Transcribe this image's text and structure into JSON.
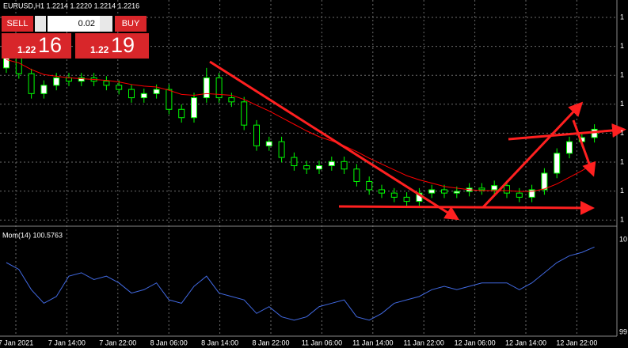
{
  "header": {
    "symbol_line": "EURUSD,H1  1.2214 1.2220 1.2214 1.2216"
  },
  "trade_panel": {
    "sell": "SELL",
    "buy": "BUY",
    "lot": "0.02",
    "sell_price_prefix": "1.22",
    "sell_price_big": "16",
    "buy_price_prefix": "1.22",
    "buy_price_big": "19"
  },
  "chart_data": [
    {
      "type": "candlestick",
      "ylim": [
        1.21,
        1.237
      ],
      "price_axis_labels": [
        "1",
        "1",
        "1",
        "1",
        "1",
        "1",
        "1",
        "1"
      ],
      "bull_color": "#ffffff",
      "bear_color": "#000000",
      "wick_color": "#00ff00",
      "categories": [
        "7 Jan 2021",
        "7 Jan 14:00",
        "7 Jan 22:00",
        "8 Jan 06:00",
        "8 Jan 14:00",
        "8 Jan 22:00",
        "11 Jan 06:00",
        "11 Jan 14:00",
        "11 Jan 22:00",
        "12 Jan 06:00",
        "12 Jan 14:00",
        "12 Jan 22:00"
      ],
      "open": [
        1.229,
        1.2302,
        1.2283,
        1.2259,
        1.2269,
        1.2278,
        1.2274,
        1.2278,
        1.2274,
        1.2269,
        1.2264,
        1.2254,
        1.2259,
        1.2264,
        1.224,
        1.223,
        1.2254,
        1.2278,
        1.2254,
        1.2249,
        1.2221,
        1.2196,
        1.2201,
        1.2182,
        1.2172,
        1.2168,
        1.2172,
        1.2177,
        1.2168,
        1.2153,
        1.2143,
        1.2139,
        1.2134,
        1.2129,
        1.2139,
        1.2143,
        1.2139,
        1.2141,
        1.2145,
        1.2143,
        1.2148,
        1.2139,
        1.2134,
        1.2143,
        1.2163,
        1.2187,
        1.2201,
        1.2206
      ],
      "high": [
        1.2308,
        1.2308,
        1.2289,
        1.2275,
        1.2284,
        1.2284,
        1.2284,
        1.2284,
        1.228,
        1.2275,
        1.227,
        1.2265,
        1.227,
        1.227,
        1.2246,
        1.226,
        1.229,
        1.2284,
        1.226,
        1.2255,
        1.2227,
        1.2207,
        1.2207,
        1.2188,
        1.2178,
        1.2178,
        1.2183,
        1.2183,
        1.2174,
        1.2159,
        1.2149,
        1.2145,
        1.214,
        1.2145,
        1.2149,
        1.2149,
        1.2147,
        1.2151,
        1.2151,
        1.2154,
        1.2154,
        1.2145,
        1.2149,
        1.2169,
        1.2193,
        1.2207,
        1.2212,
        1.2222
      ],
      "low": [
        1.2284,
        1.2277,
        1.2253,
        1.2253,
        1.2263,
        1.2268,
        1.2268,
        1.2268,
        1.2263,
        1.2258,
        1.2248,
        1.2248,
        1.2253,
        1.2234,
        1.2224,
        1.2224,
        1.2248,
        1.2248,
        1.2243,
        1.2215,
        1.219,
        1.219,
        1.2176,
        1.2166,
        1.2162,
        1.2162,
        1.2166,
        1.2162,
        1.2147,
        1.2137,
        1.2133,
        1.2128,
        1.2123,
        1.2123,
        1.2133,
        1.2133,
        1.2133,
        1.2135,
        1.2137,
        1.2137,
        1.2133,
        1.2128,
        1.2128,
        1.2137,
        1.2157,
        1.2181,
        1.2195,
        1.22
      ],
      "close": [
        1.2302,
        1.2283,
        1.2259,
        1.2269,
        1.2278,
        1.2274,
        1.2278,
        1.2274,
        1.2269,
        1.2264,
        1.2254,
        1.2259,
        1.2264,
        1.224,
        1.223,
        1.2254,
        1.2278,
        1.2254,
        1.2249,
        1.2221,
        1.2196,
        1.2201,
        1.2182,
        1.2172,
        1.2168,
        1.2172,
        1.2177,
        1.2168,
        1.2153,
        1.2143,
        1.2139,
        1.2134,
        1.2129,
        1.2139,
        1.2143,
        1.2139,
        1.2141,
        1.2145,
        1.2143,
        1.2148,
        1.2139,
        1.2134,
        1.2143,
        1.2163,
        1.2187,
        1.2201,
        1.2206,
        1.2216
      ],
      "ma": {
        "color": "#ff0000",
        "values": [
          1.23,
          1.2296,
          1.2288,
          1.2282,
          1.228,
          1.2278,
          1.2277,
          1.2276,
          1.2275,
          1.2273,
          1.227,
          1.2268,
          1.2267,
          1.2263,
          1.2258,
          1.2257,
          1.2259,
          1.2258,
          1.2257,
          1.2252,
          1.2245,
          1.2238,
          1.223,
          1.2222,
          1.2214,
          1.2207,
          1.2202,
          1.2196,
          1.2189,
          1.2181,
          1.2174,
          1.2167,
          1.216,
          1.2155,
          1.2151,
          1.2147,
          1.2145,
          1.2143,
          1.2142,
          1.2142,
          1.2142,
          1.2141,
          1.2141,
          1.2144,
          1.215,
          1.2158,
          1.2166,
          1.2175
        ]
      }
    },
    {
      "type": "line",
      "title": "Mom(14) 100.5763",
      "color": "#4169e1",
      "ylim": [
        99.3,
        100.7
      ],
      "axis_labels": [
        "10",
        "99"
      ],
      "values": [
        100.35,
        100.25,
        99.95,
        99.75,
        99.85,
        100.15,
        100.2,
        100.1,
        100.15,
        100.05,
        99.9,
        99.95,
        100.05,
        99.8,
        99.75,
        100.0,
        100.15,
        99.9,
        99.85,
        99.8,
        99.6,
        99.7,
        99.55,
        99.5,
        99.55,
        99.7,
        99.75,
        99.8,
        99.55,
        99.5,
        99.6,
        99.75,
        99.8,
        99.85,
        99.95,
        100.0,
        99.95,
        100.0,
        100.05,
        100.05,
        100.05,
        99.95,
        100.05,
        100.2,
        100.35,
        100.45,
        100.5,
        100.58
      ]
    }
  ]
}
